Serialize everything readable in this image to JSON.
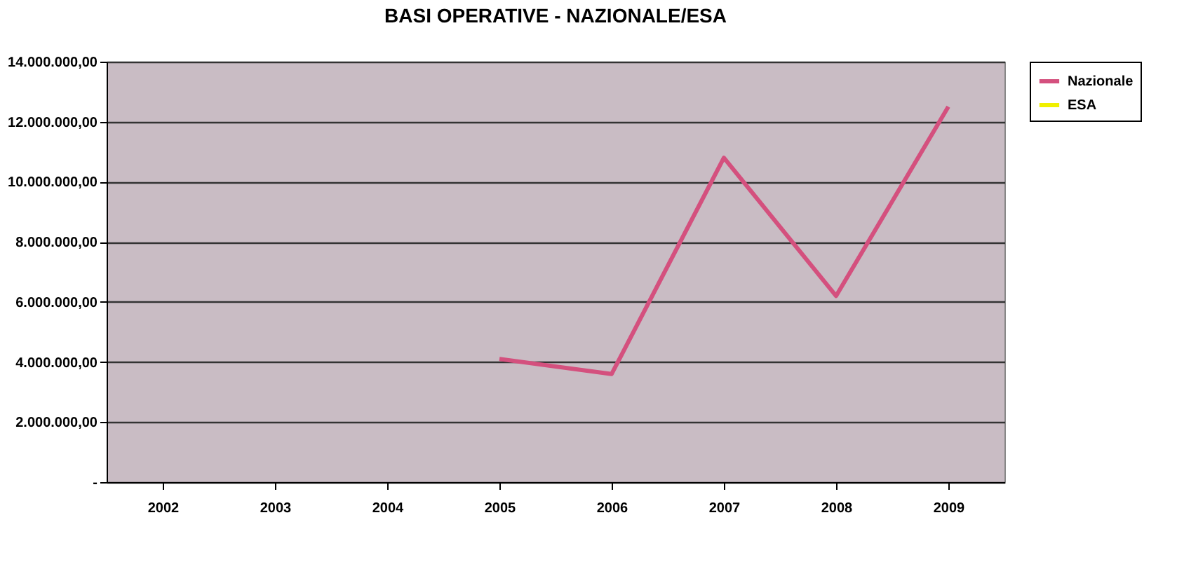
{
  "chart_data": {
    "type": "line",
    "title": "BASI OPERATIVE - NAZIONALE/ESA",
    "categories": [
      "2002",
      "2003",
      "2004",
      "2005",
      "2006",
      "2007",
      "2008",
      "2009"
    ],
    "series": [
      {
        "name": "Nazionale",
        "color": "#d4507e",
        "values": [
          null,
          null,
          null,
          4100000,
          3600000,
          10800000,
          6200000,
          12500000
        ]
      },
      {
        "name": "ESA",
        "color": "#f0f000",
        "values": [
          null,
          null,
          null,
          null,
          null,
          null,
          null,
          null
        ]
      }
    ],
    "ylim": [
      0,
      14000000
    ],
    "yticks": [
      {
        "value": 0,
        "label": "-"
      },
      {
        "value": 2000000,
        "label": "2.000.000,00"
      },
      {
        "value": 4000000,
        "label": "4.000.000,00"
      },
      {
        "value": 6000000,
        "label": "6.000.000,00"
      },
      {
        "value": 8000000,
        "label": "8.000.000,00"
      },
      {
        "value": 10000000,
        "label": "10.000.000,00"
      },
      {
        "value": 12000000,
        "label": "12.000.000,00"
      },
      {
        "value": 14000000,
        "label": "14.000.000,00"
      }
    ],
    "grid": "y",
    "legend": "right",
    "marker": "none",
    "line_style": "solid"
  }
}
